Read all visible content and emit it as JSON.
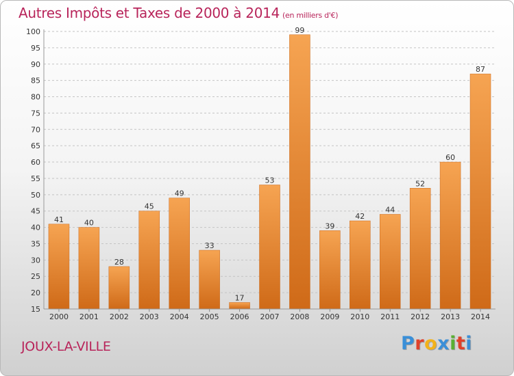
{
  "chart_data": {
    "type": "bar",
    "title": "Autres Impôts et Taxes de 2000 à 2014",
    "subtitle": "(en milliers d'€)",
    "xlabel": "",
    "ylabel": "",
    "categories": [
      "2000",
      "2001",
      "2002",
      "2003",
      "2004",
      "2005",
      "2006",
      "2007",
      "2008",
      "2009",
      "2010",
      "2011",
      "2012",
      "2013",
      "2014"
    ],
    "values": [
      41,
      40,
      28,
      45,
      49,
      33,
      17,
      53,
      99,
      39,
      42,
      44,
      52,
      60,
      87
    ],
    "ylim": [
      15,
      100
    ],
    "yticks": [
      15,
      20,
      25,
      30,
      35,
      40,
      45,
      50,
      55,
      60,
      65,
      70,
      75,
      80,
      85,
      90,
      95,
      100
    ],
    "grid": true,
    "bar_color": "#f0923c"
  },
  "commune": "JOUX-LA-VILLE",
  "logo": {
    "letters": [
      "P",
      "r",
      "o",
      "x",
      "i",
      "t",
      "i"
    ],
    "colors": [
      "#3a8fd8",
      "#e0412b",
      "#f2b21a",
      "#3a8fd8",
      "#5ab033",
      "#e0412b",
      "#3a8fd8"
    ]
  }
}
